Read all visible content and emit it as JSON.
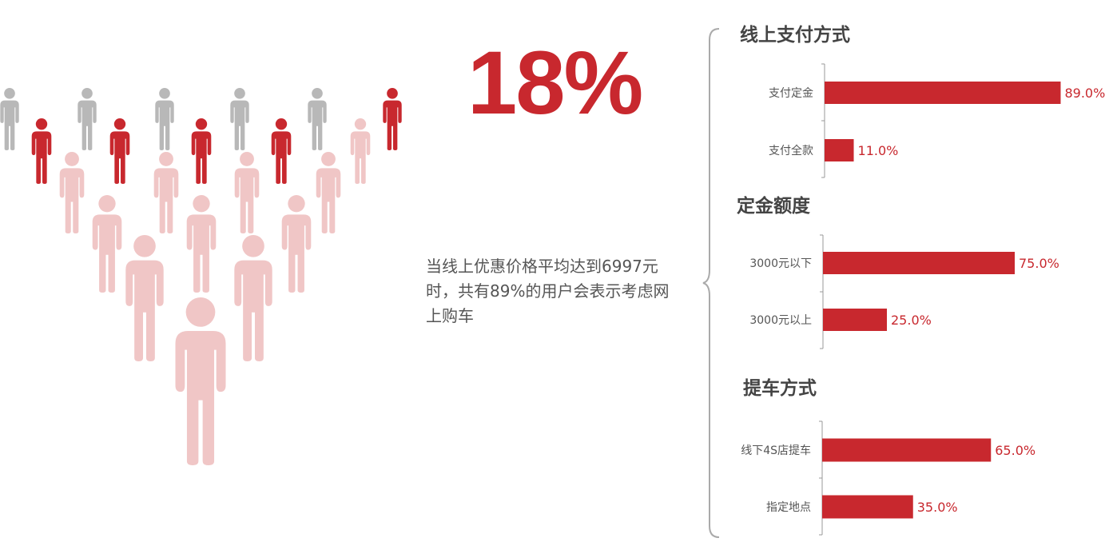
{
  "headline": {
    "percent": "18%"
  },
  "description": {
    "line1": "当线上优惠价格平均达到6997元",
    "line2": "时，共有89%的用户会表示考虑网",
    "line3": "上购车"
  },
  "colors": {
    "accent": "#c8282e",
    "light": "#f0c6c6",
    "gray": "#b8b8b8",
    "label": "#555555",
    "axis": "#999999"
  },
  "icons": {
    "person": "person-icon"
  },
  "chart_data": [
    {
      "type": "bar",
      "orientation": "horizontal",
      "title": "线上支付方式",
      "categories": [
        "支付定金",
        "支付全款"
      ],
      "values": [
        89.0,
        11.0
      ],
      "value_labels": [
        "89.0%",
        "11.0%"
      ],
      "xlim": [
        0,
        100
      ]
    },
    {
      "type": "bar",
      "orientation": "horizontal",
      "title": "定金额度",
      "categories": [
        "3000元以下",
        "3000元以上"
      ],
      "values": [
        75.0,
        25.0
      ],
      "value_labels": [
        "75.0%",
        "25.0%"
      ],
      "xlim": [
        0,
        100
      ]
    },
    {
      "type": "bar",
      "orientation": "horizontal",
      "title": "提车方式",
      "categories": [
        "线下4S店提车",
        "指定地点"
      ],
      "values": [
        65.0,
        35.0
      ],
      "value_labels": [
        "65.0%",
        "35.0%"
      ],
      "xlim": [
        0,
        100
      ]
    }
  ]
}
